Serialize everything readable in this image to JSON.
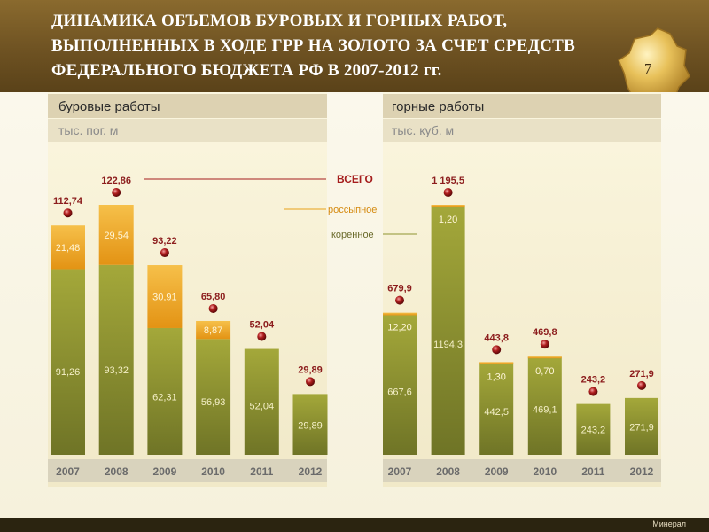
{
  "header": {
    "title": "ДИНАМИКА ОБЪЕМОВ БУРОВЫХ И ГОРНЫХ РАБОТ, ВЫПОЛНЕННЫХ В ХОДЕ ГРР НА ЗОЛОТО ЗА СЧЕТ СРЕДСТВ ФЕДЕРАЛЬНОГО БЮДЖЕТА РФ В 2007-2012 гг.",
    "page_number": "7"
  },
  "legend": {
    "total": "ВСЕГО",
    "placer": "россыпное",
    "bedrock": "коренное"
  },
  "colors": {
    "bedrock": "#8f9430",
    "placer": "#e8a21a",
    "total_marker": "#a51d1d",
    "header": "#6e5222"
  },
  "footer": {
    "brand": "Минерал"
  },
  "chart_data": [
    {
      "type": "bar",
      "title": "буровые работы",
      "subtitle": "тыс. пог. м",
      "categories": [
        "2007",
        "2008",
        "2009",
        "2010",
        "2011",
        "2012"
      ],
      "series": [
        {
          "name": "коренное",
          "values": [
            91.26,
            93.32,
            62.31,
            56.93,
            52.04,
            29.89
          ],
          "labels": [
            "91,26",
            "93,32",
            "62,31",
            "56,93",
            "52,04",
            "29,89"
          ]
        },
        {
          "name": "россыпное",
          "values": [
            21.48,
            29.54,
            30.91,
            8.87,
            0,
            0
          ],
          "labels": [
            "21,48",
            "29,54",
            "30,91",
            "8,87",
            "",
            ""
          ]
        }
      ],
      "totals": [
        112.74,
        122.86,
        93.22,
        65.8,
        52.04,
        29.89
      ],
      "total_labels": [
        "112,74",
        "122,86",
        "93,22",
        "65,80",
        "52,04",
        "29,89"
      ],
      "stacked": true
    },
    {
      "type": "bar",
      "title": "горные работы",
      "subtitle": "тыс. куб. м",
      "categories": [
        "2007",
        "2008",
        "2009",
        "2010",
        "2011",
        "2012"
      ],
      "series": [
        {
          "name": "коренное",
          "values": [
            667.6,
            1194.3,
            442.5,
            469.1,
            243.2,
            271.9
          ],
          "labels": [
            "667,6",
            "1194,3",
            "442,5",
            "469,1",
            "243,2",
            "271,9"
          ]
        },
        {
          "name": "россыпное",
          "values": [
            12.2,
            1.2,
            1.3,
            0.7,
            0,
            0
          ],
          "labels": [
            "12,20",
            "1,20",
            "1,30",
            "0,70",
            "",
            ""
          ]
        }
      ],
      "totals": [
        679.9,
        1195.5,
        443.8,
        469.8,
        243.2,
        271.9
      ],
      "total_labels": [
        "679,9",
        "1 195,5",
        "443,8",
        "469,8",
        "243,2",
        "271,9"
      ],
      "stacked": true
    }
  ]
}
